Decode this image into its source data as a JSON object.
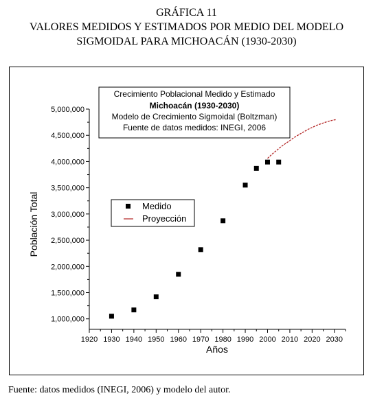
{
  "heading": {
    "line1": "GRÁFICA 11",
    "line2": "VALORES MEDIDOS Y ESTIMADOS POR MEDIO DEL MODELO",
    "line3": "SIGMOIDAL PARA  MICHOACÁN (1930-2030)"
  },
  "source_note": "Fuente: datos medidos (INEGI, 2006) y modelo del autor.",
  "chart_data": {
    "type": "scatter",
    "title_box": [
      "Crecimiento Poblacional Medido y Estimado",
      "Michoacán (1930-2030)",
      "Modelo de Crecimiento Sigmoidal (Boltzman)",
      "Fuente de datos medidos: INEGI, 2006"
    ],
    "xlabel": "Años",
    "ylabel": "Población Total",
    "xlim": [
      1920,
      2035
    ],
    "ylim": [
      800000,
      5000000
    ],
    "xticks": [
      1920,
      1930,
      1940,
      1950,
      1960,
      1970,
      1980,
      1990,
      2000,
      2010,
      2020,
      2030
    ],
    "yticks": [
      1000000,
      1500000,
      2000000,
      2500000,
      3000000,
      3500000,
      4000000,
      4500000,
      5000000
    ],
    "ytick_labels": [
      "1,000,000",
      "1,500,000",
      "2,000,000",
      "2,500,000",
      "3,000,000",
      "3,500,000",
      "4,000,000",
      "4,500,000",
      "5,000,000"
    ],
    "legend_placement": "middle-left",
    "grid": false,
    "series": [
      {
        "name": "Medido",
        "kind": "points",
        "color": "#000000",
        "x": [
          1930,
          1940,
          1950,
          1960,
          1970,
          1980,
          1990,
          1995,
          2000,
          2005
        ],
        "y": [
          1050000,
          1170000,
          1420000,
          1850000,
          2320000,
          2870000,
          3550000,
          3870000,
          3990000,
          3990000
        ]
      },
      {
        "name": "Proyección",
        "kind": "dashed-line",
        "color": "#b22222",
        "x": [
          2000,
          2002,
          2004,
          2006,
          2008,
          2010,
          2012,
          2014,
          2016,
          2018,
          2020,
          2022,
          2024,
          2026,
          2028,
          2030,
          2031
        ],
        "y": [
          4060000,
          4140000,
          4210000,
          4280000,
          4340000,
          4400000,
          4460000,
          4510000,
          4560000,
          4610000,
          4650000,
          4690000,
          4720000,
          4750000,
          4775000,
          4795000,
          4800000
        ]
      }
    ]
  }
}
